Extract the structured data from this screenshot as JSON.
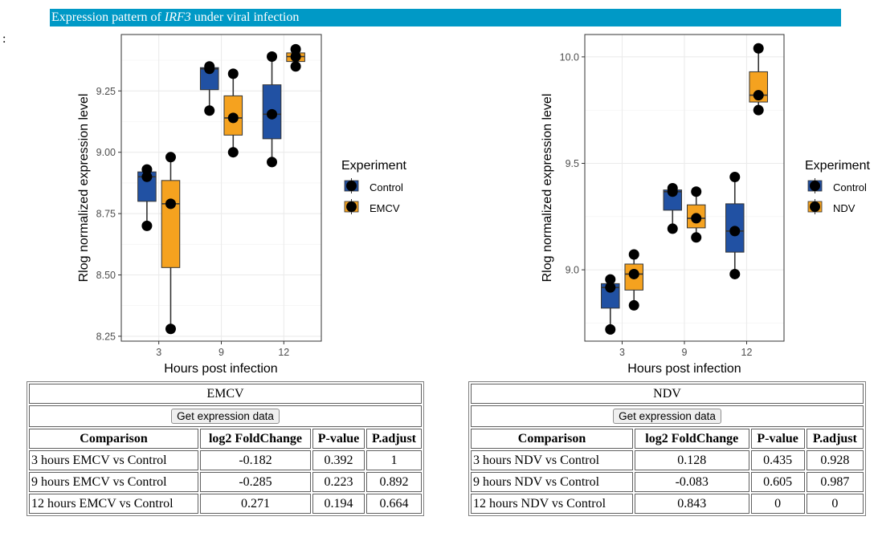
{
  "page": {
    "leading_text": ":",
    "header": {
      "prefix": "Expression pattern of ",
      "gene": "IRF3",
      "suffix": " under viral infection",
      "background_color": "#0099c6"
    }
  },
  "colors": {
    "control": "#2151a3",
    "virus": "#f5a21f",
    "point": "#000000",
    "grid": "#ebebeb"
  },
  "chart_data": [
    {
      "type": "box",
      "title": "",
      "xlabel": "Hours post infection",
      "ylabel": "Rlog normalized expression level",
      "categories": [
        "3",
        "9",
        "12"
      ],
      "ylim": [
        8.23,
        9.48
      ],
      "yticks": [
        8.25,
        8.5,
        8.75,
        9.0,
        9.25
      ],
      "ytick_labels": [
        "8.25",
        "8.50",
        "8.75",
        "9.00",
        "9.25"
      ],
      "grid": true,
      "legend": {
        "title": "Experiment",
        "position": "right",
        "entries": [
          "Control",
          "EMCV"
        ]
      },
      "series": [
        {
          "name": "Control",
          "boxes": [
            {
              "category": "3",
              "q1": 8.8,
              "median": 8.9,
              "q3": 8.92,
              "min": 8.7,
              "max": 8.93,
              "points": [
                8.93,
                8.9,
                8.7
              ]
            },
            {
              "category": "9",
              "q1": 9.255,
              "median": 9.34,
              "q3": 9.345,
              "min": 9.17,
              "max": 9.35,
              "points": [
                9.35,
                9.34,
                9.17
              ]
            },
            {
              "category": "12",
              "q1": 9.055,
              "median": 9.155,
              "q3": 9.275,
              "min": 8.96,
              "max": 9.39,
              "points": [
                9.39,
                9.155,
                8.96
              ]
            }
          ]
        },
        {
          "name": "EMCV",
          "boxes": [
            {
              "category": "3",
              "q1": 8.53,
              "median": 8.79,
              "q3": 8.885,
              "min": 8.28,
              "max": 8.98,
              "points": [
                8.98,
                8.79,
                8.28
              ]
            },
            {
              "category": "9",
              "q1": 9.07,
              "median": 9.14,
              "q3": 9.23,
              "min": 9.0,
              "max": 9.32,
              "points": [
                9.32,
                9.14,
                9.0
              ]
            },
            {
              "category": "12",
              "q1": 9.37,
              "median": 9.39,
              "q3": 9.405,
              "min": 9.35,
              "max": 9.42,
              "points": [
                9.42,
                9.39,
                9.35
              ]
            }
          ]
        }
      ]
    },
    {
      "type": "box",
      "title": "",
      "xlabel": "Hours post infection",
      "ylabel": "Rlog normalized expression level",
      "categories": [
        "3",
        "9",
        "12"
      ],
      "ylim": [
        8.665,
        10.105
      ],
      "yticks": [
        9.0,
        9.5,
        10.0
      ],
      "ytick_labels": [
        "9.0",
        "9.5",
        "10.0"
      ],
      "grid": true,
      "legend": {
        "title": "Experiment",
        "position": "right",
        "entries": [
          "Control",
          "NDV"
        ]
      },
      "series": [
        {
          "name": "Control",
          "boxes": [
            {
              "category": "3",
              "q1": 8.82,
              "median": 8.917,
              "q3": 8.935,
              "min": 8.72,
              "max": 8.955,
              "points": [
                8.955,
                8.917,
                8.72
              ]
            },
            {
              "category": "9",
              "q1": 9.28,
              "median": 9.367,
              "q3": 9.375,
              "min": 9.193,
              "max": 9.383,
              "points": [
                9.383,
                9.367,
                9.193
              ]
            },
            {
              "category": "12",
              "q1": 9.083,
              "median": 9.182,
              "q3": 9.31,
              "min": 8.98,
              "max": 9.436,
              "points": [
                9.436,
                9.182,
                8.98
              ]
            }
          ]
        },
        {
          "name": "NDV",
          "boxes": [
            {
              "category": "3",
              "q1": 8.905,
              "median": 8.98,
              "q3": 9.027,
              "min": 8.833,
              "max": 9.072,
              "points": [
                9.072,
                8.98,
                8.833
              ]
            },
            {
              "category": "9",
              "q1": 9.197,
              "median": 9.242,
              "q3": 9.305,
              "min": 9.152,
              "max": 9.367,
              "points": [
                9.367,
                9.242,
                9.152
              ]
            },
            {
              "category": "12",
              "q1": 9.788,
              "median": 9.82,
              "q3": 9.93,
              "min": 9.75,
              "max": 10.04,
              "points": [
                10.04,
                9.82,
                9.75
              ]
            }
          ]
        }
      ]
    }
  ],
  "tables": [
    {
      "title": "EMCV",
      "button_label": "Get expression data",
      "columns": [
        "Comparison",
        "log2 FoldChange",
        "P-value",
        "P.adjust"
      ],
      "rows": [
        [
          "3 hours EMCV vs Control",
          "-0.182",
          "0.392",
          "1"
        ],
        [
          "9 hours EMCV vs Control",
          "-0.285",
          "0.223",
          "0.892"
        ],
        [
          "12 hours EMCV vs Control",
          "0.271",
          "0.194",
          "0.664"
        ]
      ]
    },
    {
      "title": "NDV",
      "button_label": "Get expression data",
      "columns": [
        "Comparison",
        "log2 FoldChange",
        "P-value",
        "P.adjust"
      ],
      "rows": [
        [
          "3 hours NDV vs Control",
          "0.128",
          "0.435",
          "0.928"
        ],
        [
          "9 hours NDV vs Control",
          "-0.083",
          "0.605",
          "0.987"
        ],
        [
          "12 hours NDV vs Control",
          "0.843",
          "0",
          "0"
        ]
      ]
    }
  ]
}
